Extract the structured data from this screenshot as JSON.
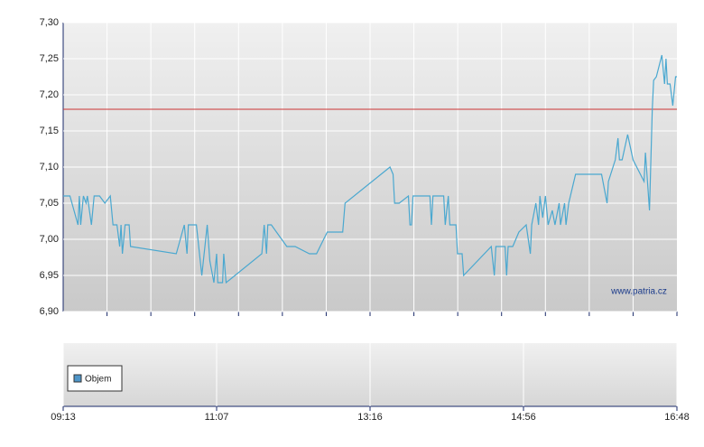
{
  "chart_data": {
    "type": "line",
    "x": [
      "09:13",
      "09:18",
      "09:24",
      "09:25",
      "09:26",
      "09:28",
      "09:30",
      "09:31",
      "09:34",
      "09:36",
      "09:40",
      "09:44",
      "09:48",
      "09:50",
      "09:53",
      "09:55",
      "09:56",
      "09:57",
      "09:59",
      "10:02",
      "10:03",
      "10:37",
      "10:43",
      "10:45",
      "10:46",
      "10:52",
      "10:56",
      "11:00",
      "11:02",
      "11:05",
      "11:07",
      "11:08",
      "11:12",
      "11:13",
      "11:15",
      "11:45",
      "11:47",
      "11:49",
      "11:50",
      "11:53",
      "12:06",
      "12:13",
      "12:25",
      "12:31",
      "12:40",
      "12:53",
      "12:55",
      "13:29",
      "13:31",
      "13:32",
      "13:35",
      "13:41",
      "13:42",
      "13:43",
      "13:44",
      "13:55",
      "13:56",
      "13:57",
      "14:04",
      "14:05",
      "14:07",
      "14:08",
      "14:12",
      "14:13",
      "14:16",
      "14:17",
      "14:35",
      "14:37",
      "14:38",
      "14:44",
      "14:45",
      "14:46",
      "14:49",
      "14:53",
      "14:58",
      "15:01",
      "15:02",
      "15:05",
      "15:07",
      "15:08",
      "15:10",
      "15:12",
      "15:14",
      "15:17",
      "15:19",
      "15:22",
      "15:23",
      "15:26",
      "15:27",
      "15:29",
      "15:34",
      "15:53",
      "15:57",
      "15:58",
      "16:03",
      "16:05",
      "16:06",
      "16:08",
      "16:12",
      "16:16",
      "16:24",
      "16:25",
      "16:28",
      "16:30",
      "16:31",
      "16:33",
      "16:37",
      "16:39",
      "16:40",
      "16:41",
      "16:43",
      "16:45",
      "16:47",
      "16:48"
    ],
    "values": [
      7.06,
      7.06,
      7.02,
      7.06,
      7.02,
      7.06,
      7.05,
      7.06,
      7.02,
      7.06,
      7.06,
      7.05,
      7.06,
      7.02,
      7.02,
      6.99,
      7.02,
      6.98,
      7.02,
      7.02,
      6.99,
      6.98,
      7.02,
      6.98,
      7.02,
      7.02,
      6.95,
      7.02,
      6.97,
      6.94,
      6.98,
      6.94,
      6.94,
      6.98,
      6.94,
      6.98,
      7.02,
      6.98,
      7.02,
      7.02,
      6.99,
      6.99,
      6.98,
      6.98,
      7.01,
      7.01,
      7.05,
      7.1,
      7.09,
      7.05,
      7.05,
      7.06,
      7.02,
      7.02,
      7.06,
      7.06,
      7.02,
      7.06,
      7.06,
      7.02,
      7.06,
      7.02,
      7.02,
      6.98,
      6.98,
      6.95,
      6.99,
      6.95,
      6.99,
      6.99,
      6.95,
      6.99,
      6.99,
      7.01,
      7.02,
      6.98,
      7.02,
      7.05,
      7.02,
      7.06,
      7.03,
      7.06,
      7.02,
      7.04,
      7.02,
      7.05,
      7.02,
      7.05,
      7.02,
      7.05,
      7.09,
      7.09,
      7.05,
      7.08,
      7.11,
      7.14,
      7.11,
      7.11,
      7.145,
      7.11,
      7.08,
      7.12,
      7.04,
      7.18,
      7.22,
      7.225,
      7.255,
      7.215,
      7.25,
      7.215,
      7.215,
      7.185,
      7.225,
      7.225
    ],
    "color": "#4aa8d0",
    "xticks": [
      "09:13",
      "11:07",
      "13:16",
      "14:56",
      "16:48"
    ],
    "ylim": [
      6.9,
      7.3
    ],
    "yticks": [
      {
        "value": 6.9,
        "label": "6,90"
      },
      {
        "value": 6.95,
        "label": "6,95"
      },
      {
        "value": 7.0,
        "label": "7,00"
      },
      {
        "value": 7.05,
        "label": "7,05"
      },
      {
        "value": 7.1,
        "label": "7,10"
      },
      {
        "value": 7.15,
        "label": "7,15"
      },
      {
        "value": 7.2,
        "label": "7,20"
      },
      {
        "value": 7.25,
        "label": "7,25"
      },
      {
        "value": 7.3,
        "label": "7,30"
      }
    ],
    "reference_line": 7.18,
    "reference_color": "#cc3333",
    "grid": true,
    "legend": {
      "label": "Objem",
      "color": "#4e95c8"
    },
    "watermark": "www.patria.cz"
  }
}
